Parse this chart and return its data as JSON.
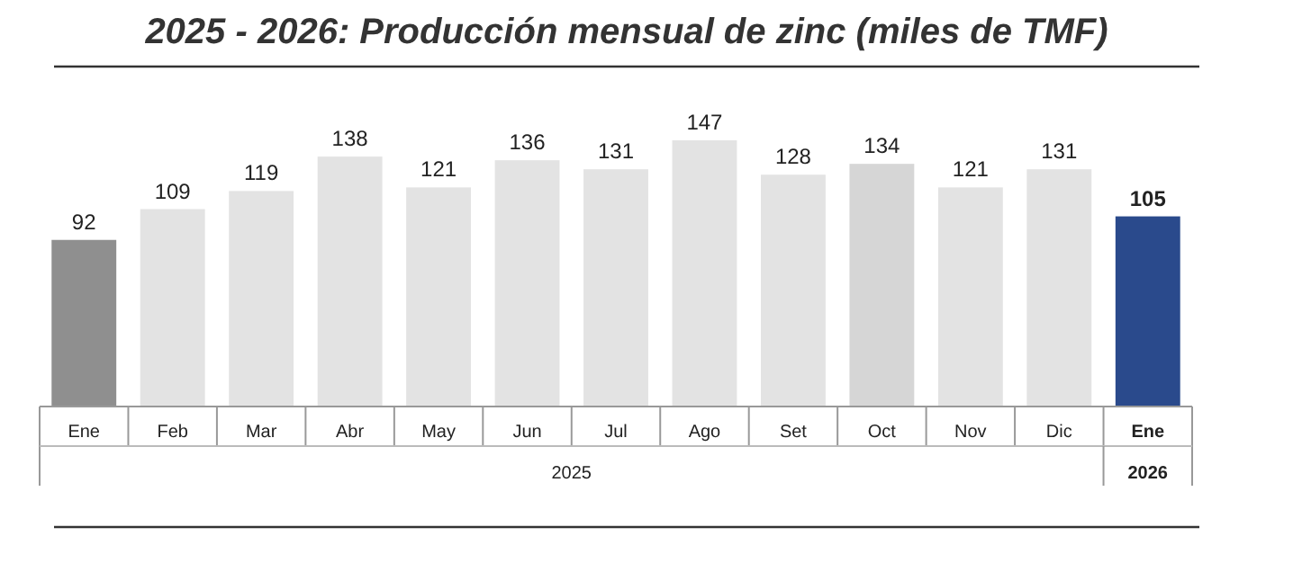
{
  "chart_data": {
    "type": "bar",
    "title": "2025 - 2026: Producción mensual de zinc (miles de TMF)",
    "categories": [
      "Ene",
      "Feb",
      "Mar",
      "Abr",
      "May",
      "Jun",
      "Jul",
      "Ago",
      "Set",
      "Oct",
      "Nov",
      "Dic",
      "Ene"
    ],
    "values": [
      92,
      109,
      119,
      138,
      121,
      136,
      131,
      147,
      128,
      134,
      121,
      131,
      105
    ],
    "colors": [
      "#8f8f8f",
      "#e3e3e3",
      "#e3e3e3",
      "#e3e3e3",
      "#e3e3e3",
      "#e3e3e3",
      "#e3e3e3",
      "#e3e3e3",
      "#e3e3e3",
      "#d6d6d6",
      "#e3e3e3",
      "#e3e3e3",
      "#2a4a8c"
    ],
    "data_labels": true,
    "annotations": [
      "2025",
      "2026"
    ]
  }
}
